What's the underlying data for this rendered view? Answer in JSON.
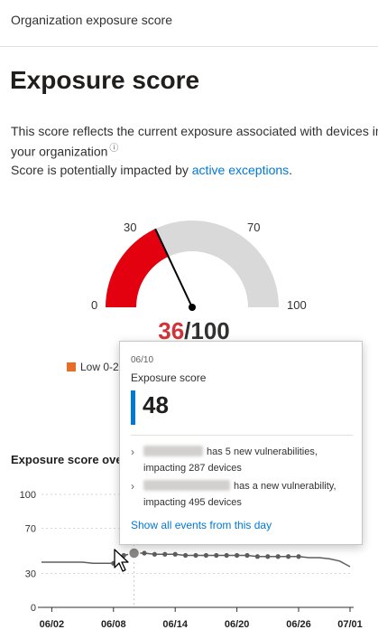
{
  "header": {
    "title": "Organization exposure score"
  },
  "page": {
    "title": "Exposure score",
    "desc_line1": "This score reflects the current exposure associated with devices in",
    "desc_line2": "your organization",
    "desc_line3_prefix": "Score is potentially impacted by ",
    "desc_link": "active exceptions",
    "desc_line3_suffix": "."
  },
  "gauge": {
    "value": 36,
    "min_label": "0",
    "max_label": "100",
    "tick_30": "30",
    "tick_70": "70",
    "score_current": "36",
    "score_sep_max": "/100",
    "fill_color": "#e3000f",
    "track_color": "#d9d9d9"
  },
  "legend": {
    "label": "Low 0-2"
  },
  "chart": {
    "title": "Exposure score ove",
    "y_ticks": [
      "100",
      "70",
      "30",
      "0"
    ],
    "x_ticks": [
      "06/02",
      "06/08",
      "06/14",
      "06/20",
      "06/26",
      "07/01"
    ]
  },
  "chart_data": {
    "type": "line",
    "title": "",
    "xlabel": "",
    "ylabel": "",
    "ylim": [
      0,
      100
    ],
    "grid": true,
    "x": [
      "06/01",
      "06/02",
      "06/03",
      "06/04",
      "06/05",
      "06/06",
      "06/07",
      "06/08",
      "06/09",
      "06/10",
      "06/11",
      "06/12",
      "06/13",
      "06/14",
      "06/15",
      "06/16",
      "06/17",
      "06/18",
      "06/19",
      "06/20",
      "06/21",
      "06/22",
      "06/23",
      "06/24",
      "06/25",
      "06/26",
      "06/27",
      "06/28",
      "06/29",
      "06/30",
      "07/01"
    ],
    "series": [
      {
        "values": [
          40,
          40,
          40,
          40,
          40,
          39,
          39,
          39,
          46,
          48,
          48,
          47,
          47,
          47,
          46,
          46,
          46,
          46,
          46,
          46,
          46,
          45,
          45,
          45,
          45,
          45,
          44,
          44,
          43,
          41,
          36
        ]
      }
    ],
    "highlight_x": "06/10"
  },
  "tooltip": {
    "date": "06/10",
    "label": "Exposure score",
    "value": "48",
    "event1_text": "has 5 new vulnerabilities,",
    "event1_line2": "impacting 287 devices",
    "event2_text": "has a new vulnerability,",
    "event2_line2": "impacting 495 devices",
    "link": "Show all events from this day"
  }
}
